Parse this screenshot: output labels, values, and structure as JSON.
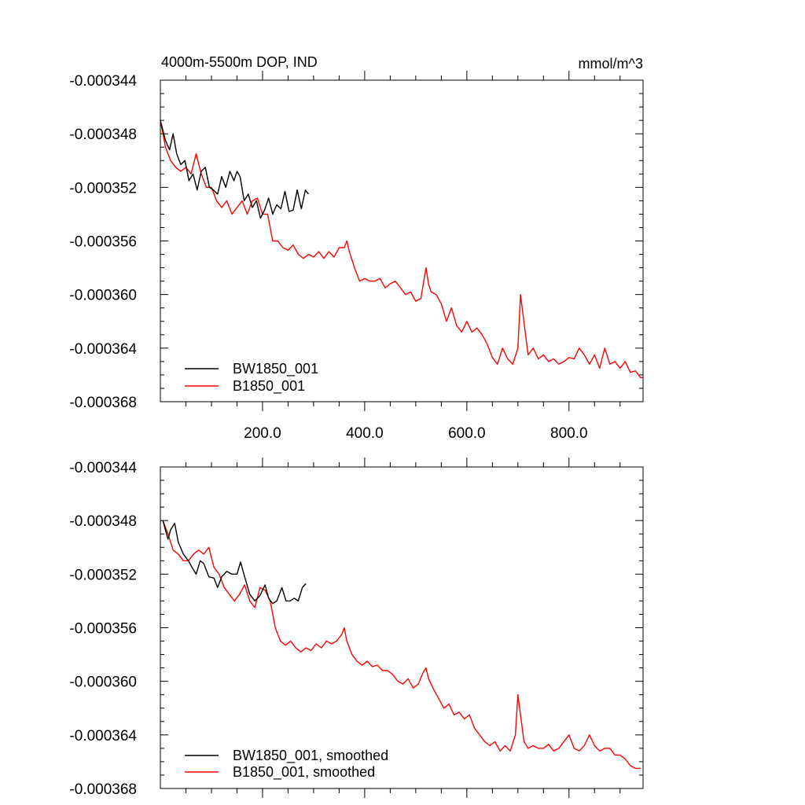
{
  "title_left": "4000m-5500m DOP, IND",
  "title_right": "mmol/m^3",
  "colors": {
    "bw": "#000000",
    "b": "#ff0000",
    "axis": "#000000"
  },
  "chart_data": [
    {
      "type": "line",
      "panel": "top",
      "title": "4000m-5500m DOP, IND",
      "units": "mmol/m^3",
      "xlim": [
        0,
        945
      ],
      "ylim": [
        -0.000368,
        -0.000344
      ],
      "y_ticks": [
        -0.000344,
        -0.000348,
        -0.000352,
        -0.000356,
        -0.00036,
        -0.000364,
        -0.000368
      ],
      "y_tick_labels": [
        "-0.000344",
        "-0.000348",
        "-0.000352",
        "-0.000356",
        "-0.000360",
        "-0.000364",
        "-0.000368"
      ],
      "x_ticks": [
        200,
        400,
        600,
        800
      ],
      "x_tick_labels": [
        "200.0",
        "400.0",
        "600.0",
        "800.0"
      ],
      "legend_position": "bottom-left",
      "series": [
        {
          "name": "BW1850_001",
          "color": "#000000",
          "x": [
            0,
            10,
            18,
            25,
            32,
            40,
            48,
            56,
            64,
            72,
            80,
            88,
            96,
            104,
            112,
            120,
            128,
            136,
            144,
            150,
            156,
            164,
            172,
            180,
            188,
            196,
            204,
            212,
            220,
            228,
            236,
            244,
            252,
            260,
            268,
            276,
            284,
            290
          ],
          "y": [
            -0.000347,
            -0.0003485,
            -0.0003492,
            -0.000348,
            -0.0003495,
            -0.0003503,
            -0.00035,
            -0.0003515,
            -0.000351,
            -0.0003522,
            -0.0003508,
            -0.0003505,
            -0.000352,
            -0.0003522,
            -0.0003525,
            -0.0003512,
            -0.000352,
            -0.0003508,
            -0.0003515,
            -0.0003508,
            -0.0003512,
            -0.000353,
            -0.0003525,
            -0.0003535,
            -0.000353,
            -0.0003543,
            -0.0003537,
            -0.0003528,
            -0.000354,
            -0.0003533,
            -0.0003536,
            -0.0003523,
            -0.0003538,
            -0.0003537,
            -0.0003522,
            -0.0003536,
            -0.0003522,
            -0.0003525
          ]
        },
        {
          "name": "B1850_001",
          "color": "#ff0000",
          "x": [
            0,
            10,
            20,
            30,
            40,
            50,
            60,
            70,
            80,
            90,
            100,
            110,
            120,
            130,
            140,
            150,
            160,
            170,
            180,
            190,
            200,
            210,
            220,
            230,
            240,
            250,
            260,
            270,
            280,
            290,
            300,
            310,
            320,
            330,
            340,
            350,
            360,
            365,
            370,
            380,
            390,
            400,
            410,
            420,
            430,
            440,
            450,
            460,
            470,
            480,
            490,
            500,
            510,
            520,
            525,
            530,
            540,
            550,
            560,
            570,
            580,
            590,
            600,
            610,
            620,
            630,
            640,
            650,
            660,
            670,
            680,
            690,
            700,
            705,
            710,
            720,
            730,
            740,
            750,
            760,
            770,
            780,
            790,
            800,
            810,
            820,
            830,
            840,
            850,
            860,
            870,
            880,
            890,
            900,
            910,
            920,
            930,
            940,
            945
          ],
          "y": [
            -0.000347,
            -0.000349,
            -0.00035,
            -0.0003505,
            -0.0003508,
            -0.0003505,
            -0.000351,
            -0.0003495,
            -0.000351,
            -0.000352,
            -0.000352,
            -0.000353,
            -0.0003535,
            -0.000353,
            -0.000354,
            -0.0003535,
            -0.000353,
            -0.000354,
            -0.000353,
            -0.0003528,
            -0.000354,
            -0.000354,
            -0.000356,
            -0.000356,
            -0.0003565,
            -0.0003567,
            -0.0003563,
            -0.000357,
            -0.0003573,
            -0.000357,
            -0.0003572,
            -0.0003568,
            -0.0003573,
            -0.0003568,
            -0.0003572,
            -0.0003565,
            -0.0003565,
            -0.000356,
            -0.0003568,
            -0.000358,
            -0.000359,
            -0.0003588,
            -0.000359,
            -0.000359,
            -0.0003588,
            -0.0003595,
            -0.0003592,
            -0.000359,
            -0.0003595,
            -0.00036,
            -0.0003598,
            -0.0003605,
            -0.0003603,
            -0.000358,
            -0.0003592,
            -0.0003598,
            -0.00036,
            -0.0003607,
            -0.000362,
            -0.000361,
            -0.0003623,
            -0.0003628,
            -0.000362,
            -0.0003628,
            -0.0003625,
            -0.000363,
            -0.0003637,
            -0.0003647,
            -0.0003652,
            -0.000364,
            -0.0003648,
            -0.0003652,
            -0.000364,
            -0.00036,
            -0.0003615,
            -0.0003645,
            -0.000364,
            -0.0003648,
            -0.0003645,
            -0.000365,
            -0.0003648,
            -0.0003652,
            -0.000365,
            -0.0003647,
            -0.0003648,
            -0.000364,
            -0.0003645,
            -0.0003652,
            -0.0003645,
            -0.0003655,
            -0.000364,
            -0.0003652,
            -0.000365,
            -0.0003655,
            -0.000365,
            -0.0003658,
            -0.0003657,
            -0.0003662,
            -0.0003662
          ]
        }
      ]
    },
    {
      "type": "line",
      "panel": "bottom",
      "xlim": [
        0,
        945
      ],
      "ylim": [
        -0.000368,
        -0.000344
      ],
      "y_ticks": [
        -0.000344,
        -0.000348,
        -0.000352,
        -0.000356,
        -0.00036,
        -0.000364,
        -0.000368
      ],
      "y_tick_labels": [
        "-0.000344",
        "-0.000348",
        "-0.000352",
        "-0.000356",
        "-0.000360",
        "-0.000364",
        "-0.000368"
      ],
      "x_ticks": [
        200,
        400,
        600,
        800
      ],
      "legend_position": "bottom-left",
      "series": [
        {
          "name": "BW1850_001, smoothed",
          "color": "#000000",
          "x": [
            5,
            15,
            20,
            28,
            35,
            45,
            55,
            62,
            70,
            78,
            85,
            95,
            105,
            112,
            120,
            130,
            140,
            150,
            157,
            165,
            175,
            185,
            195,
            205,
            212,
            220,
            228,
            238,
            246,
            254,
            262,
            270,
            278,
            285
          ],
          "y": [
            -0.000348,
            -0.0003494,
            -0.0003487,
            -0.0003482,
            -0.0003496,
            -0.0003505,
            -0.000351,
            -0.0003515,
            -0.000352,
            -0.000351,
            -0.0003512,
            -0.0003522,
            -0.0003523,
            -0.000353,
            -0.0003522,
            -0.0003518,
            -0.000352,
            -0.000352,
            -0.0003511,
            -0.0003522,
            -0.0003535,
            -0.000354,
            -0.0003536,
            -0.0003528,
            -0.0003538,
            -0.0003542,
            -0.000354,
            -0.000353,
            -0.000354,
            -0.000354,
            -0.0003538,
            -0.000354,
            -0.000353,
            -0.0003527
          ]
        },
        {
          "name": "B1850_001, smoothed",
          "color": "#ff0000",
          "x": [
            5,
            15,
            25,
            35,
            45,
            55,
            65,
            75,
            85,
            95,
            105,
            115,
            125,
            135,
            145,
            155,
            165,
            175,
            185,
            195,
            205,
            215,
            225,
            235,
            245,
            255,
            265,
            275,
            285,
            295,
            305,
            315,
            325,
            335,
            345,
            355,
            360,
            365,
            375,
            385,
            395,
            405,
            415,
            425,
            435,
            445,
            455,
            465,
            475,
            485,
            495,
            505,
            515,
            520,
            525,
            535,
            545,
            555,
            565,
            575,
            585,
            595,
            605,
            615,
            625,
            635,
            645,
            655,
            665,
            675,
            685,
            695,
            700,
            705,
            712,
            720,
            730,
            740,
            750,
            760,
            770,
            780,
            790,
            800,
            810,
            820,
            830,
            840,
            850,
            860,
            870,
            880,
            890,
            900,
            910,
            920,
            930,
            940
          ],
          "y": [
            -0.000348,
            -0.000349,
            -0.0003502,
            -0.0003505,
            -0.000351,
            -0.000351,
            -0.0003505,
            -0.0003502,
            -0.0003505,
            -0.00035,
            -0.0003515,
            -0.000352,
            -0.000353,
            -0.0003535,
            -0.000354,
            -0.0003535,
            -0.0003528,
            -0.000354,
            -0.0003545,
            -0.000353,
            -0.0003532,
            -0.000354,
            -0.000356,
            -0.000357,
            -0.0003573,
            -0.000357,
            -0.0003575,
            -0.0003578,
            -0.0003575,
            -0.0003577,
            -0.0003572,
            -0.0003575,
            -0.000357,
            -0.0003572,
            -0.000357,
            -0.0003565,
            -0.000356,
            -0.000357,
            -0.000358,
            -0.0003585,
            -0.0003588,
            -0.0003585,
            -0.0003589,
            -0.0003588,
            -0.0003592,
            -0.0003592,
            -0.0003595,
            -0.00036,
            -0.0003602,
            -0.0003598,
            -0.0003605,
            -0.0003602,
            -0.0003593,
            -0.000359,
            -0.0003598,
            -0.0003606,
            -0.0003613,
            -0.000362,
            -0.0003617,
            -0.0003625,
            -0.0003623,
            -0.0003628,
            -0.0003625,
            -0.0003635,
            -0.000364,
            -0.0003645,
            -0.0003648,
            -0.0003645,
            -0.0003652,
            -0.0003648,
            -0.0003652,
            -0.000364,
            -0.000361,
            -0.0003625,
            -0.0003645,
            -0.000365,
            -0.0003648,
            -0.000365,
            -0.000365,
            -0.0003647,
            -0.0003652,
            -0.000365,
            -0.0003645,
            -0.000364,
            -0.000365,
            -0.0003652,
            -0.0003648,
            -0.000364,
            -0.0003648,
            -0.0003652,
            -0.000365,
            -0.000365,
            -0.0003655,
            -0.0003655,
            -0.0003658,
            -0.0003663,
            -0.0003665,
            -0.0003665
          ]
        }
      ]
    }
  ]
}
